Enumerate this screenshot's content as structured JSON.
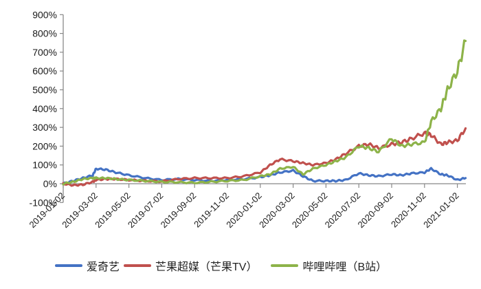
{
  "chart_data": {
    "type": "line",
    "title": "",
    "xlabel": "",
    "ylabel": "",
    "ylim": [
      -100,
      900
    ],
    "y_ticks": [
      "900%",
      "800%",
      "700%",
      "600%",
      "500%",
      "400%",
      "300%",
      "200%",
      "100%",
      "0%",
      "-100%"
    ],
    "y_tick_values": [
      900,
      800,
      700,
      600,
      500,
      400,
      300,
      200,
      100,
      0,
      -100
    ],
    "x_tick_labels": [
      "2019-01-02",
      "2019-03-02",
      "2019-05-02",
      "2019-07-02",
      "2019-09-02",
      "2019-11-02",
      "2020-01-02",
      "2020-03-02",
      "2020-05-02",
      "2020-07-02",
      "2020-09-02",
      "2020-11-02",
      "2021-01-02"
    ],
    "grid": false,
    "legend_position": "bottom",
    "x": [
      0,
      0.3,
      0.6,
      0.9,
      1.0,
      1.3,
      1.6,
      2.0,
      2.5,
      3.0,
      3.5,
      4.0,
      4.5,
      5.0,
      5.5,
      6.0,
      6.3,
      6.6,
      7.0,
      7.3,
      7.6,
      8.0,
      8.3,
      8.6,
      9.0,
      9.3,
      9.6,
      10.0,
      10.3,
      10.6,
      11.0,
      11.2,
      11.5,
      11.7,
      12.0,
      12.25
    ],
    "series": [
      {
        "name": "爱奇艺",
        "color": "#4472C4",
        "values": [
          0,
          15,
          30,
          45,
          80,
          75,
          60,
          45,
          30,
          20,
          25,
          20,
          15,
          20,
          25,
          35,
          45,
          60,
          70,
          40,
          15,
          15,
          15,
          20,
          55,
          45,
          40,
          50,
          45,
          55,
          60,
          80,
          50,
          45,
          20,
          30
        ]
      },
      {
        "name": "芒果超媒（芒果TV）",
        "color": "#C0504D",
        "values": [
          0,
          -8,
          -5,
          10,
          20,
          25,
          25,
          20,
          15,
          12,
          25,
          30,
          30,
          30,
          40,
          60,
          100,
          130,
          120,
          110,
          100,
          110,
          130,
          160,
          200,
          210,
          190,
          210,
          220,
          240,
          270,
          260,
          210,
          220,
          230,
          295
        ]
      },
      {
        "name": "哔哩哔哩（B站）",
        "color": "#8DB349",
        "values": [
          0,
          10,
          25,
          30,
          30,
          30,
          25,
          20,
          15,
          10,
          8,
          5,
          10,
          15,
          20,
          40,
          50,
          80,
          90,
          50,
          80,
          100,
          120,
          140,
          200,
          190,
          170,
          240,
          200,
          210,
          220,
          330,
          400,
          500,
          600,
          760
        ]
      }
    ]
  },
  "legend": {
    "items": [
      {
        "label": "爱奇艺",
        "color": "#4472C4"
      },
      {
        "label": "芒果超媒（芒果TV）",
        "color": "#C0504D"
      },
      {
        "label": "哔哩哔哩（B站）",
        "color": "#8DB349"
      }
    ]
  }
}
